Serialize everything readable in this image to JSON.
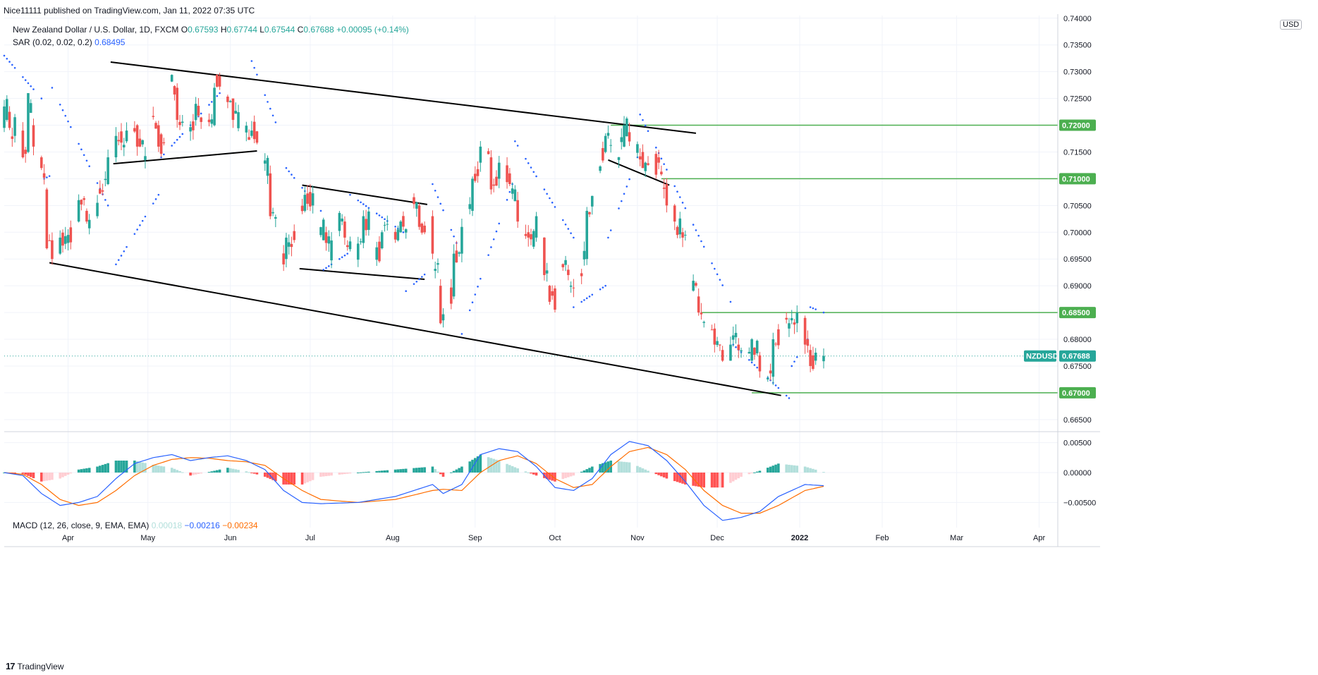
{
  "header": {
    "published_by": "Nice11111 published on TradingView.com, Jan 11, 2022 07:35 UTC",
    "symbol_title": "New Zealand Dollar / U.S. Dollar, 1D, FXCM",
    "ohlc": {
      "o_label": "O",
      "o": "0.67593",
      "h_label": "H",
      "h": "0.67744",
      "l_label": "L",
      "l": "0.67544",
      "c_label": "C",
      "c": "0.67688",
      "change": "+0.00095 (+0.14%)"
    },
    "sar_label": "SAR (0.02, 0.02, 0.2)",
    "sar_value": "0.68495",
    "currency_button": "USD"
  },
  "macd_header": {
    "label": "MACD (12, 26, close, 9, EMA, EMA)",
    "hist": "0.00018",
    "macd": "−0.00216",
    "signal": "−0.00234"
  },
  "footer": {
    "brand": "TradingView"
  },
  "colors": {
    "bull": "#26a69a",
    "bear": "#ef5350",
    "sar": "#2962ff",
    "level": "#4caf50",
    "trend": "#000000",
    "macd": "#2962ff",
    "signal": "#ff6d00",
    "hist_pos_strong": "#26a69a",
    "hist_pos_weak": "#b2dfdb",
    "hist_neg_strong": "#ff5252",
    "hist_neg_weak": "#ffcdd2"
  },
  "chart_data": {
    "type": "candlestick",
    "symbol": "NZDUSD",
    "timeframe": "1D",
    "x_range": [
      "2021-03-08",
      "2022-04-08"
    ],
    "x_ticks": [
      {
        "label": "Apr",
        "date": "2021-04-01"
      },
      {
        "label": "May",
        "date": "2021-05-01"
      },
      {
        "label": "Jun",
        "date": "2021-06-01"
      },
      {
        "label": "Jul",
        "date": "2021-07-01"
      },
      {
        "label": "Aug",
        "date": "2021-08-01"
      },
      {
        "label": "Sep",
        "date": "2021-09-01"
      },
      {
        "label": "Oct",
        "date": "2021-10-01"
      },
      {
        "label": "Nov",
        "date": "2021-11-01"
      },
      {
        "label": "Dec",
        "date": "2021-12-01"
      },
      {
        "label": "2022",
        "date": "2022-01-01"
      },
      {
        "label": "Feb",
        "date": "2022-02-01"
      },
      {
        "label": "Mar",
        "date": "2022-03-01"
      },
      {
        "label": "Apr",
        "date": "2022-04-01"
      }
    ],
    "price_ylim": [
      0.663,
      0.7405
    ],
    "price_ticks": [
      "0.74000",
      "0.73500",
      "0.73000",
      "0.72500",
      "0.72000",
      "0.71500",
      "0.71000",
      "0.70500",
      "0.70000",
      "0.69500",
      "0.69000",
      "0.68500",
      "0.68000",
      "0.67500",
      "0.67000",
      "0.66500"
    ],
    "last_price": {
      "tag": "NZDUSD",
      "value": 0.67688,
      "label": "0.67688"
    },
    "horizontal_levels": [
      {
        "value": 0.72,
        "label": "0.72000",
        "from": "2021-10-22"
      },
      {
        "value": 0.71,
        "label": "0.71000",
        "from": "2021-11-10"
      },
      {
        "value": 0.685,
        "label": "0.68500",
        "from": "2021-11-25"
      },
      {
        "value": 0.67,
        "label": "0.67000",
        "from": "2021-12-14"
      }
    ],
    "trendlines": [
      {
        "name": "channel-top",
        "from": [
          "2021-04-17",
          0.7318
        ],
        "to": [
          "2021-11-23",
          0.7185
        ]
      },
      {
        "name": "channel-bottom",
        "from": [
          "2021-03-25",
          0.6943
        ],
        "to": [
          "2021-12-25",
          0.6695
        ]
      },
      {
        "name": "may-support",
        "from": [
          "2021-04-18",
          0.7128
        ],
        "to": [
          "2021-06-11",
          0.7152
        ]
      },
      {
        "name": "jun-flag-top",
        "from": [
          "2021-06-28",
          0.7088
        ],
        "to": [
          "2021-08-14",
          0.7052
        ]
      },
      {
        "name": "jun-flag-bottom",
        "from": [
          "2021-06-27",
          0.6932
        ],
        "to": [
          "2021-08-13",
          0.6912
        ]
      },
      {
        "name": "nov-down",
        "from": [
          "2021-10-21",
          0.7135
        ],
        "to": [
          "2021-11-13",
          0.7088
        ]
      }
    ],
    "anchors": [
      [
        "2021-03-08",
        0.7195,
        0.7235
      ],
      [
        "2021-03-10",
        0.7225,
        0.7195
      ],
      [
        "2021-03-12",
        0.718,
        0.7215
      ],
      [
        "2021-03-15",
        0.719,
        0.714
      ],
      [
        "2021-03-17",
        0.715,
        0.726
      ],
      [
        "2021-03-19",
        0.72,
        0.716
      ],
      [
        "2021-03-22",
        0.714,
        0.712
      ],
      [
        "2021-03-24",
        0.708,
        0.697
      ],
      [
        "2021-03-26",
        0.6985,
        0.695
      ],
      [
        "2021-03-29",
        0.696,
        0.699
      ],
      [
        "2021-04-01",
        0.698,
        0.6995
      ],
      [
        "2021-04-05",
        0.702,
        0.706
      ],
      [
        "2021-04-08",
        0.704,
        0.702
      ],
      [
        "2021-04-12",
        0.703,
        0.7055
      ],
      [
        "2021-04-16",
        0.709,
        0.714
      ],
      [
        "2021-04-19",
        0.714,
        0.718
      ],
      [
        "2021-04-23",
        0.717,
        0.719
      ],
      [
        "2021-04-27",
        0.72,
        0.716
      ],
      [
        "2021-05-01",
        0.715,
        0.723
      ],
      [
        "2021-05-05",
        0.72,
        0.716
      ],
      [
        "2021-05-08",
        0.718,
        0.728
      ],
      [
        "2021-05-12",
        0.727,
        0.721
      ],
      [
        "2021-05-15",
        0.721,
        0.718
      ],
      [
        "2021-05-19",
        0.721,
        0.724
      ],
      [
        "2021-05-22",
        0.718,
        0.721
      ],
      [
        "2021-05-26",
        0.72,
        0.727
      ],
      [
        "2021-05-29",
        0.729,
        0.725
      ],
      [
        "2021-06-02",
        0.725,
        0.721
      ],
      [
        "2021-06-06",
        0.721,
        0.7215
      ],
      [
        "2021-06-09",
        0.718,
        0.719
      ],
      [
        "2021-06-12",
        0.718,
        0.715
      ],
      [
        "2021-06-16",
        0.711,
        0.703
      ],
      [
        "2021-06-19",
        0.7,
        0.695
      ],
      [
        "2021-06-22",
        0.695,
        0.699
      ],
      [
        "2021-06-26",
        0.7,
        0.704
      ],
      [
        "2021-06-29",
        0.704,
        0.707
      ],
      [
        "2021-07-03",
        0.705,
        0.702
      ],
      [
        "2021-07-07",
        0.7,
        0.698
      ],
      [
        "2021-07-10",
        0.696,
        0.701
      ],
      [
        "2021-07-14",
        0.702,
        0.699
      ],
      [
        "2021-07-18",
        0.697,
        0.696
      ],
      [
        "2021-07-21",
        0.698,
        0.703
      ],
      [
        "2021-07-25",
        0.701,
        0.696
      ],
      [
        "2021-07-28",
        0.697,
        0.7
      ],
      [
        "2021-08-01",
        0.699,
        0.6985
      ],
      [
        "2021-08-04",
        0.7,
        0.702
      ],
      [
        "2021-08-08",
        0.7,
        0.705
      ],
      [
        "2021-08-11",
        0.705,
        0.701
      ],
      [
        "2021-08-14",
        0.7,
        0.704
      ],
      [
        "2021-08-16",
        0.703,
        0.696
      ],
      [
        "2021-08-19",
        0.69,
        0.683
      ],
      [
        "2021-08-21",
        0.683,
        0.688
      ],
      [
        "2021-08-24",
        0.688,
        0.696
      ],
      [
        "2021-08-27",
        0.696,
        0.701
      ],
      [
        "2021-08-31",
        0.704,
        0.71
      ],
      [
        "2021-09-03",
        0.713,
        0.716
      ],
      [
        "2021-09-07",
        0.714,
        0.708
      ],
      [
        "2021-09-10",
        0.71,
        0.713
      ],
      [
        "2021-09-14",
        0.711,
        0.709
      ],
      [
        "2021-09-17",
        0.706,
        0.702
      ],
      [
        "2021-09-21",
        0.7,
        0.699
      ],
      [
        "2021-09-24",
        0.699,
        0.703
      ],
      [
        "2021-09-27",
        0.699,
        0.692
      ],
      [
        "2021-09-29",
        0.69,
        0.687
      ],
      [
        "2021-10-02",
        0.688,
        0.693
      ],
      [
        "2021-10-06",
        0.693,
        0.692
      ],
      [
        "2021-10-09",
        0.691,
        0.693
      ],
      [
        "2021-10-13",
        0.695,
        0.704
      ],
      [
        "2021-10-16",
        0.707,
        0.71
      ],
      [
        "2021-10-20",
        0.715,
        0.718
      ],
      [
        "2021-10-23",
        0.716,
        0.7145
      ],
      [
        "2021-10-27",
        0.716,
        0.72
      ],
      [
        "2021-10-30",
        0.718,
        0.717
      ],
      [
        "2021-11-03",
        0.715,
        0.712
      ],
      [
        "2021-11-06",
        0.713,
        0.71
      ],
      [
        "2021-11-09",
        0.714,
        0.713
      ],
      [
        "2021-11-12",
        0.709,
        0.705
      ],
      [
        "2021-11-15",
        0.705,
        0.702
      ],
      [
        "2021-11-18",
        0.7,
        0.699
      ],
      [
        "2021-11-21",
        0.697,
        0.69
      ],
      [
        "2021-11-24",
        0.688,
        0.685
      ],
      [
        "2021-11-27",
        0.683,
        0.6815
      ],
      [
        "2021-11-30",
        0.682,
        0.679
      ],
      [
        "2021-12-03",
        0.678,
        0.676
      ],
      [
        "2021-12-06",
        0.676,
        0.679
      ],
      [
        "2021-12-09",
        0.679,
        0.678
      ],
      [
        "2021-12-12",
        0.678,
        0.675
      ],
      [
        "2021-12-14",
        0.676,
        0.68
      ],
      [
        "2021-12-17",
        0.677,
        0.674
      ],
      [
        "2021-12-19",
        0.672,
        0.671
      ],
      [
        "2021-12-22",
        0.673,
        0.68
      ],
      [
        "2021-12-25",
        0.681,
        0.683
      ],
      [
        "2021-12-28",
        0.682,
        0.683
      ],
      [
        "2021-12-31",
        0.683,
        0.685
      ],
      [
        "2022-01-03",
        0.684,
        0.679
      ],
      [
        "2022-01-05",
        0.678,
        0.675
      ],
      [
        "2022-01-07",
        0.676,
        0.6775
      ],
      [
        "2022-01-10",
        0.6759,
        0.6769
      ]
    ],
    "sar_segments": [
      [
        "2021-03-08",
        0.733,
        "2021-03-22",
        0.725,
        "up"
      ],
      [
        "2021-03-23",
        0.71,
        "2021-03-25",
        0.7105,
        "dn"
      ],
      [
        "2021-03-26",
        0.727,
        "2021-04-16",
        0.705,
        "up"
      ],
      [
        "2021-04-19",
        0.694,
        "2021-05-05",
        0.707,
        "dn"
      ],
      [
        "2021-05-06",
        0.714,
        "2021-05-28",
        0.726,
        "dn"
      ],
      [
        "2021-06-09",
        0.732,
        "2021-06-20",
        0.718,
        "up"
      ],
      [
        "2021-06-22",
        0.712,
        "2021-07-05",
        0.704,
        "up"
      ],
      [
        "2021-07-06",
        0.693,
        "2021-07-15",
        0.696,
        "dn"
      ],
      [
        "2021-07-16",
        0.707,
        "2021-08-05",
        0.7,
        "up"
      ],
      [
        "2021-08-06",
        0.689,
        "2021-08-15",
        0.693,
        "dn"
      ],
      [
        "2021-08-16",
        0.709,
        "2021-08-25",
        0.698,
        "up"
      ],
      [
        "2021-08-27",
        0.681,
        "2021-09-15",
        0.709,
        "dn"
      ],
      [
        "2021-09-16",
        0.717,
        "2021-10-08",
        0.699,
        "up"
      ],
      [
        "2021-10-08",
        0.686,
        "2021-10-20",
        0.69,
        "dn"
      ],
      [
        "2021-10-21",
        0.699,
        "2021-11-01",
        0.714,
        "dn"
      ],
      [
        "2021-11-02",
        0.722,
        "2021-12-06",
        0.687,
        "up"
      ],
      [
        "2021-12-07",
        0.679,
        "2021-12-28",
        0.669,
        "dn"
      ],
      [
        "2021-12-29",
        0.675,
        "2022-01-04",
        0.68,
        "dn"
      ],
      [
        "2022-01-05",
        0.686,
        "2022-01-10",
        0.685,
        "up"
      ]
    ],
    "macd_ylim": [
      -0.0092,
      0.0066
    ],
    "macd_ticks": [
      "0.00500",
      "0.00000",
      "−0.00500"
    ],
    "macd_anchors": [
      [
        "2021-03-08",
        0.0,
        0.0
      ],
      [
        "2021-03-15",
        -0.0005,
        -0.0003
      ],
      [
        "2021-03-22",
        -0.0035,
        -0.002
      ],
      [
        "2021-03-29",
        -0.0055,
        -0.0045
      ],
      [
        "2021-04-05",
        -0.005,
        -0.0055
      ],
      [
        "2021-04-12",
        -0.004,
        -0.005
      ],
      [
        "2021-04-19",
        -0.001,
        -0.003
      ],
      [
        "2021-04-26",
        0.0015,
        -0.0005
      ],
      [
        "2021-05-03",
        0.0025,
        0.0012
      ],
      [
        "2021-05-10",
        0.003,
        0.0022
      ],
      [
        "2021-05-17",
        0.002,
        0.0025
      ],
      [
        "2021-05-24",
        0.0025,
        0.0024
      ],
      [
        "2021-05-31",
        0.0028,
        0.002
      ],
      [
        "2021-06-07",
        0.002,
        0.0018
      ],
      [
        "2021-06-14",
        0.0005,
        0.0012
      ],
      [
        "2021-06-21",
        -0.003,
        -0.001
      ],
      [
        "2021-06-28",
        -0.005,
        -0.003
      ],
      [
        "2021-07-05",
        -0.0052,
        -0.0045
      ],
      [
        "2021-07-19",
        -0.005,
        -0.005
      ],
      [
        "2021-08-02",
        -0.004,
        -0.0045
      ],
      [
        "2021-08-16",
        -0.002,
        -0.003
      ],
      [
        "2021-08-20",
        -0.0035,
        -0.0028
      ],
      [
        "2021-08-27",
        -0.002,
        -0.003
      ],
      [
        "2021-09-03",
        0.003,
        0.0
      ],
      [
        "2021-09-10",
        0.004,
        0.002
      ],
      [
        "2021-09-17",
        0.0035,
        0.0028
      ],
      [
        "2021-09-24",
        0.001,
        0.0015
      ],
      [
        "2021-10-01",
        -0.0025,
        -0.001
      ],
      [
        "2021-10-08",
        -0.003,
        -0.0025
      ],
      [
        "2021-10-15",
        -0.001,
        -0.002
      ],
      [
        "2021-10-22",
        0.003,
        0.001
      ],
      [
        "2021-10-29",
        0.0052,
        0.0035
      ],
      [
        "2021-11-05",
        0.0045,
        0.0042
      ],
      [
        "2021-11-12",
        0.002,
        0.003
      ],
      [
        "2021-11-19",
        -0.0015,
        0.0005
      ],
      [
        "2021-11-26",
        -0.0055,
        -0.003
      ],
      [
        "2021-12-03",
        -0.008,
        -0.0055
      ],
      [
        "2021-12-10",
        -0.0075,
        -0.0068
      ],
      [
        "2021-12-17",
        -0.0065,
        -0.0068
      ],
      [
        "2021-12-24",
        -0.004,
        -0.0055
      ],
      [
        "2022-01-03",
        -0.002,
        -0.003
      ],
      [
        "2022-01-10",
        -0.0022,
        -0.0023
      ]
    ]
  }
}
